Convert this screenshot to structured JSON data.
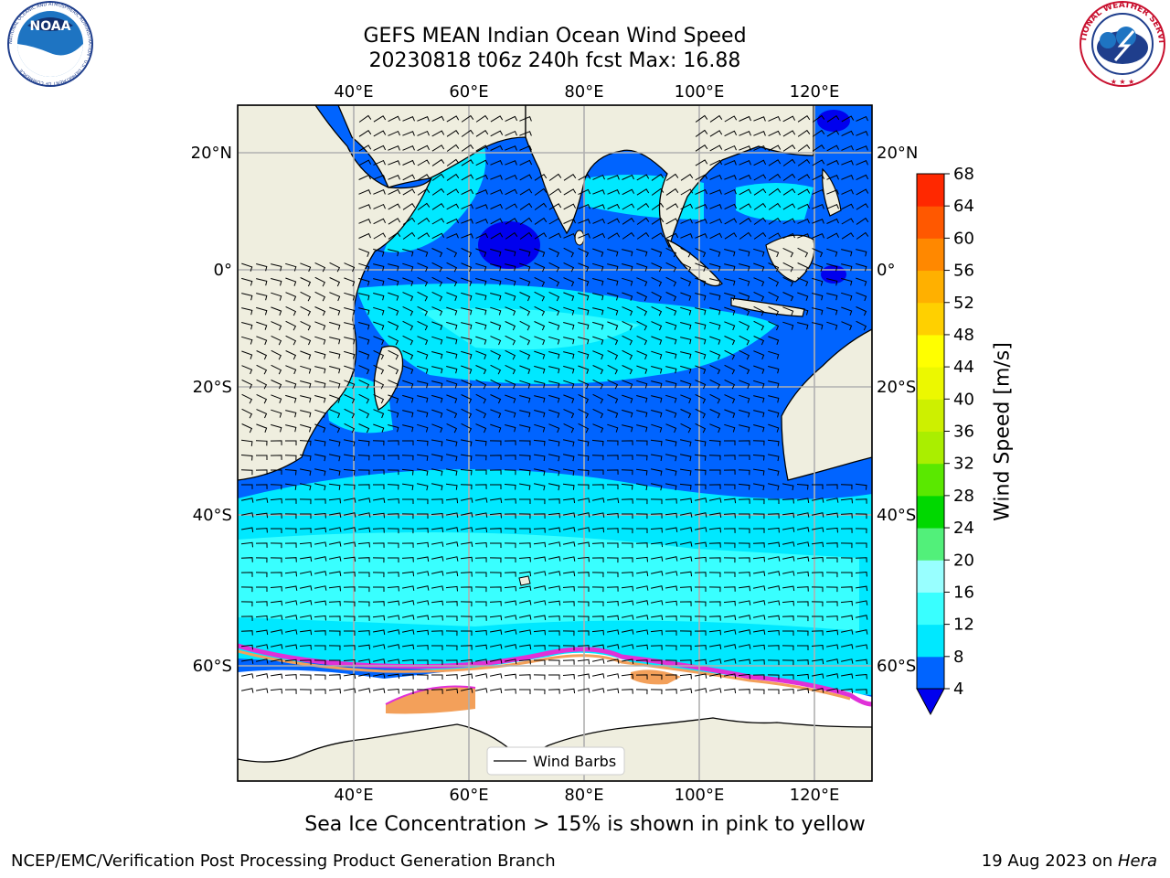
{
  "header": {
    "title_line1": "GEFS MEAN Indian Ocean Wind Speed",
    "title_line2": "20230818 t06z 240h fcst   Max: 16.88"
  },
  "logos": {
    "noaa": {
      "label": "NOAA",
      "ring_text": "NATIONAL OCEANIC AND ATMOSPHERIC ADMINISTRATION · U.S. DEPARTMENT OF COMMERCE"
    },
    "nws": {
      "ring_text": "NATIONAL WEATHER SERVICE"
    }
  },
  "map": {
    "lon_ticks": [
      "40°E",
      "60°E",
      "80°E",
      "100°E",
      "120°E"
    ],
    "lat_ticks": [
      "20°N",
      "0°",
      "20°S",
      "40°S",
      "60°S"
    ],
    "legend_label": "Wind Barbs",
    "colors": {
      "land": "#efeedf",
      "ice_free": "#ffffff",
      "ice": "#f3a05a",
      "ice_edge": "#e030d8"
    }
  },
  "colorbar": {
    "title": "Wind Speed [m/s]",
    "ticks": [
      "4",
      "8",
      "12",
      "16",
      "20",
      "24",
      "28",
      "32",
      "36",
      "40",
      "44",
      "48",
      "52",
      "56",
      "60",
      "64",
      "68"
    ],
    "band_colors": [
      "#0064ff",
      "#00e8ff",
      "#39ffff",
      "#98ffff",
      "#52f07a",
      "#00d800",
      "#5ae800",
      "#aaee00",
      "#cdf000",
      "#ecf800",
      "#ffff00",
      "#ffd000",
      "#ffb000",
      "#ff8800",
      "#ff5800",
      "#ff2800"
    ],
    "extend_color": "#0000ee"
  },
  "caption": "Sea Ice Concentration > 15% is shown in pink to yellow",
  "footer": {
    "left": "NCEP/EMC/Verification Post Processing Product Generation Branch",
    "date": "19 Aug 2023 on ",
    "host": "Hera"
  }
}
